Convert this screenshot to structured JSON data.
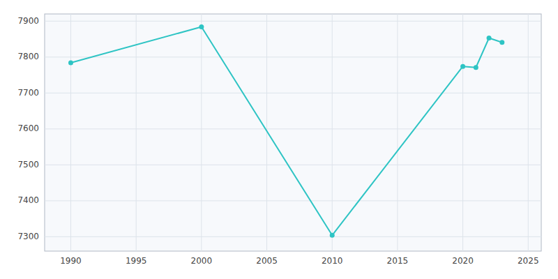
{
  "chart_data": {
    "type": "line",
    "x": [
      1990,
      2000,
      2010,
      2020,
      2021,
      2022,
      2023
    ],
    "values": [
      7784,
      7884,
      7304,
      7774,
      7771,
      7853,
      7841
    ],
    "color": "#2ec4c4",
    "marker": "circle",
    "xlim": [
      1988,
      2026
    ],
    "ylim": [
      7260,
      7920
    ],
    "xticks": [
      1990,
      1995,
      2000,
      2005,
      2010,
      2015,
      2020,
      2025
    ],
    "yticks": [
      7300,
      7400,
      7500,
      7600,
      7700,
      7800,
      7900
    ],
    "grid": true
  }
}
